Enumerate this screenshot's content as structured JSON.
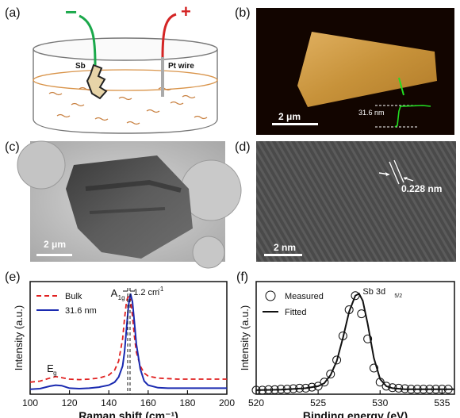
{
  "panels": {
    "a": {
      "label": "(a)",
      "electrode_left": "Sb",
      "electrode_right": "Pt wire",
      "minus_sign": "−",
      "plus_sign": "+",
      "colors": {
        "wire_neg": "#1aa84a",
        "wire_pos": "#d42525",
        "liquid": "#d9944a",
        "flakes": "#c88040"
      }
    },
    "b": {
      "label": "(b)",
      "scalebar": "2 μm",
      "height_label": "31.6 nm",
      "colors": {
        "background": "#120500",
        "flake": "#c7923a",
        "profile": "#22dd22"
      }
    },
    "c": {
      "label": "(c)",
      "scalebar": "2 μm"
    },
    "d": {
      "label": "(d)",
      "scalebar": "2 nm",
      "spacing_label": "0.228 nm"
    },
    "e": {
      "label": "(e)"
    },
    "f": {
      "label": "(f)"
    }
  },
  "chart_data": [
    {
      "id": "raman",
      "type": "line",
      "xlabel": "Raman shift (cm⁻¹)",
      "ylabel": "Intensity (a.u.)",
      "xlim": [
        100,
        200
      ],
      "xticks": [
        "100",
        "120",
        "140",
        "160",
        "180",
        "200"
      ],
      "yticks": false,
      "legend": "top-left",
      "annotations": {
        "a1g": "A",
        "a1g_sub": "1g",
        "shift": "1.2 cm",
        "shift_sup": "-1",
        "eg": "E",
        "eg_sub": "g"
      },
      "series": [
        {
          "name": "Bulk",
          "style": "dashed",
          "color": "#e02020",
          "x": [
            100,
            105,
            110,
            113,
            116,
            120,
            125,
            130,
            135,
            140,
            143,
            145,
            147,
            148,
            149,
            150,
            151,
            152,
            153,
            154,
            156,
            158,
            160,
            165,
            170,
            175,
            180,
            190,
            200
          ],
          "y": [
            0.12,
            0.13,
            0.16,
            0.175,
            0.165,
            0.15,
            0.145,
            0.15,
            0.16,
            0.19,
            0.24,
            0.33,
            0.55,
            0.75,
            0.92,
            0.99,
            0.94,
            0.78,
            0.58,
            0.42,
            0.28,
            0.21,
            0.18,
            0.16,
            0.155,
            0.15,
            0.15,
            0.15,
            0.15
          ]
        },
        {
          "name": "31.6 nm",
          "style": "solid",
          "color": "#1a2ab0",
          "x": [
            100,
            105,
            110,
            113,
            116,
            120,
            125,
            130,
            135,
            140,
            143,
            145,
            147,
            148,
            149,
            150,
            151,
            152,
            153,
            154,
            156,
            158,
            160,
            165,
            170,
            175,
            180,
            190,
            200
          ],
          "y": [
            0.05,
            0.055,
            0.08,
            0.09,
            0.085,
            0.06,
            0.055,
            0.06,
            0.07,
            0.09,
            0.12,
            0.17,
            0.28,
            0.42,
            0.65,
            0.88,
            1.0,
            0.92,
            0.72,
            0.5,
            0.25,
            0.13,
            0.09,
            0.065,
            0.06,
            0.06,
            0.06,
            0.06,
            0.06
          ]
        }
      ]
    },
    {
      "id": "xps",
      "type": "scatter",
      "xlabel": "Binding energy (eV)",
      "ylabel": "Intensity (a.u.)",
      "xlim": [
        520,
        536
      ],
      "xticks": [
        "520",
        "525",
        "530",
        "535"
      ],
      "yticks": false,
      "legend": "top-left",
      "annotations": {
        "peak": "Sb 3d",
        "peak_sub": "5/2"
      },
      "series": [
        {
          "name": "Measured",
          "marker": "open-circle",
          "x": [
            520,
            520.5,
            521,
            521.5,
            522,
            522.5,
            523,
            523.5,
            524,
            524.5,
            525,
            525.5,
            526,
            526.5,
            527,
            527.5,
            528,
            528.5,
            529,
            529.5,
            530,
            530.5,
            531,
            531.5,
            532,
            532.5,
            533,
            533.5,
            534,
            534.5,
            535,
            535.5
          ],
          "y": [
            0.04,
            0.04,
            0.045,
            0.045,
            0.05,
            0.05,
            0.055,
            0.06,
            0.06,
            0.07,
            0.08,
            0.12,
            0.2,
            0.34,
            0.58,
            0.84,
            0.98,
            0.8,
            0.55,
            0.26,
            0.12,
            0.08,
            0.065,
            0.06,
            0.055,
            0.05,
            0.05,
            0.05,
            0.05,
            0.05,
            0.05,
            0.05
          ]
        },
        {
          "name": "Fitted",
          "style": "solid",
          "x": [
            520,
            522,
            524,
            525,
            525.5,
            526,
            526.5,
            527,
            527.5,
            528,
            528.3,
            528.6,
            529,
            529.5,
            530,
            530.5,
            531,
            532,
            534,
            536
          ],
          "y": [
            0.04,
            0.045,
            0.06,
            0.08,
            0.11,
            0.19,
            0.33,
            0.56,
            0.82,
            0.98,
            1.0,
            0.93,
            0.7,
            0.36,
            0.15,
            0.08,
            0.06,
            0.05,
            0.05,
            0.05
          ]
        }
      ]
    }
  ]
}
